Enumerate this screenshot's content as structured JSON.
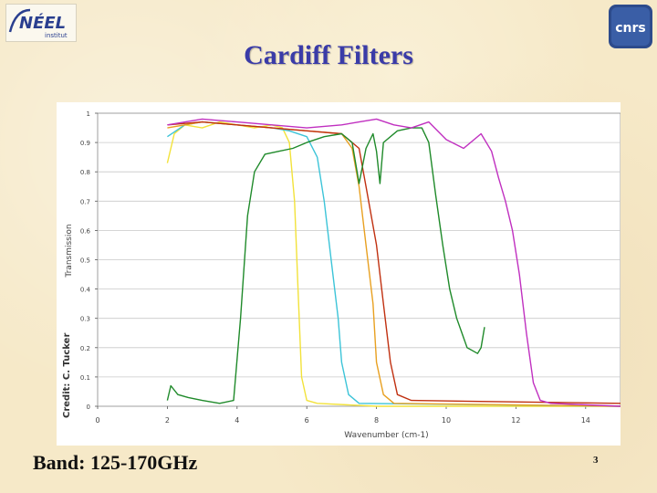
{
  "slide": {
    "title": "Cardiff Filters",
    "band_label": "Band: 125-170GHz",
    "page_number": "3",
    "credit": "Credit: C. Tucker",
    "logo_left_text": "NÉEL",
    "logo_left_sub": "institut",
    "logo_right_text": "cnrs"
  },
  "chart_data": {
    "type": "line",
    "title": "",
    "xlabel": "Wavenumber  (cm-1)",
    "ylabel": "Transmission",
    "xlim": [
      0,
      15
    ],
    "ylim": [
      0,
      1
    ],
    "x_ticks": [
      "0",
      "2",
      "4",
      "6",
      "8",
      "10",
      "12",
      "14"
    ],
    "y_ticks": [
      "0",
      "0.1",
      "0.2",
      "0.3",
      "0.4",
      "0.5",
      "0.6",
      "0.7",
      "0.8",
      "0.9",
      "1"
    ],
    "grid": "horizontal",
    "legend": "none",
    "series": [
      {
        "color": "#f2e23a",
        "points": [
          [
            2.0,
            0.83
          ],
          [
            2.2,
            0.93
          ],
          [
            2.5,
            0.96
          ],
          [
            3.0,
            0.95
          ],
          [
            3.5,
            0.97
          ],
          [
            4.0,
            0.96
          ],
          [
            4.5,
            0.95
          ],
          [
            5.0,
            0.96
          ],
          [
            5.3,
            0.95
          ],
          [
            5.5,
            0.9
          ],
          [
            5.65,
            0.7
          ],
          [
            5.75,
            0.4
          ],
          [
            5.85,
            0.1
          ],
          [
            6.0,
            0.02
          ],
          [
            6.3,
            0.01
          ],
          [
            8.0,
            0.0
          ],
          [
            15.0,
            0.0
          ]
        ]
      },
      {
        "color": "#3cc4d8",
        "points": [
          [
            2.0,
            0.92
          ],
          [
            2.5,
            0.96
          ],
          [
            3.0,
            0.97
          ],
          [
            4.0,
            0.96
          ],
          [
            5.0,
            0.95
          ],
          [
            5.5,
            0.94
          ],
          [
            6.0,
            0.92
          ],
          [
            6.3,
            0.85
          ],
          [
            6.5,
            0.7
          ],
          [
            6.7,
            0.5
          ],
          [
            6.9,
            0.3
          ],
          [
            7.0,
            0.15
          ],
          [
            7.2,
            0.04
          ],
          [
            7.5,
            0.01
          ],
          [
            15.0,
            0.0
          ]
        ]
      },
      {
        "color": "#e8a020",
        "points": [
          [
            2.0,
            0.95
          ],
          [
            3.0,
            0.97
          ],
          [
            4.0,
            0.96
          ],
          [
            5.0,
            0.95
          ],
          [
            6.0,
            0.94
          ],
          [
            7.0,
            0.93
          ],
          [
            7.3,
            0.88
          ],
          [
            7.5,
            0.75
          ],
          [
            7.7,
            0.55
          ],
          [
            7.9,
            0.35
          ],
          [
            8.0,
            0.15
          ],
          [
            8.2,
            0.04
          ],
          [
            8.5,
            0.01
          ],
          [
            15.0,
            0.0
          ]
        ]
      },
      {
        "color": "#c03010",
        "points": [
          [
            2.0,
            0.96
          ],
          [
            3.0,
            0.97
          ],
          [
            4.0,
            0.96
          ],
          [
            5.0,
            0.95
          ],
          [
            6.0,
            0.94
          ],
          [
            7.0,
            0.93
          ],
          [
            7.5,
            0.88
          ],
          [
            7.7,
            0.75
          ],
          [
            8.0,
            0.55
          ],
          [
            8.2,
            0.35
          ],
          [
            8.4,
            0.15
          ],
          [
            8.6,
            0.04
          ],
          [
            9.0,
            0.02
          ],
          [
            15.0,
            0.01
          ]
        ]
      },
      {
        "color": "#1f8a2a",
        "points": [
          [
            2.0,
            0.02
          ],
          [
            2.1,
            0.07
          ],
          [
            2.3,
            0.04
          ],
          [
            2.6,
            0.03
          ],
          [
            3.0,
            0.02
          ],
          [
            3.5,
            0.01
          ],
          [
            3.9,
            0.02
          ],
          [
            4.1,
            0.3
          ],
          [
            4.3,
            0.65
          ],
          [
            4.5,
            0.8
          ],
          [
            4.8,
            0.86
          ],
          [
            5.2,
            0.87
          ],
          [
            5.6,
            0.88
          ],
          [
            6.0,
            0.9
          ],
          [
            6.5,
            0.92
          ],
          [
            7.0,
            0.93
          ],
          [
            7.3,
            0.9
          ],
          [
            7.5,
            0.76
          ],
          [
            7.7,
            0.88
          ],
          [
            7.9,
            0.93
          ],
          [
            8.0,
            0.87
          ],
          [
            8.1,
            0.76
          ],
          [
            8.2,
            0.9
          ],
          [
            8.6,
            0.94
          ],
          [
            9.0,
            0.95
          ],
          [
            9.3,
            0.95
          ],
          [
            9.5,
            0.9
          ],
          [
            9.7,
            0.72
          ],
          [
            9.9,
            0.55
          ],
          [
            10.1,
            0.4
          ],
          [
            10.3,
            0.3
          ],
          [
            10.6,
            0.2
          ],
          [
            10.9,
            0.18
          ],
          [
            11.0,
            0.2
          ],
          [
            11.1,
            0.27
          ]
        ]
      },
      {
        "color": "#c030c0",
        "points": [
          [
            2.0,
            0.96
          ],
          [
            3.0,
            0.98
          ],
          [
            4.0,
            0.97
          ],
          [
            5.0,
            0.96
          ],
          [
            6.0,
            0.95
          ],
          [
            7.0,
            0.96
          ],
          [
            7.5,
            0.97
          ],
          [
            8.0,
            0.98
          ],
          [
            8.5,
            0.96
          ],
          [
            9.0,
            0.95
          ],
          [
            9.5,
            0.97
          ],
          [
            10.0,
            0.91
          ],
          [
            10.5,
            0.88
          ],
          [
            11.0,
            0.93
          ],
          [
            11.3,
            0.87
          ],
          [
            11.5,
            0.78
          ],
          [
            11.7,
            0.7
          ],
          [
            11.9,
            0.6
          ],
          [
            12.1,
            0.45
          ],
          [
            12.3,
            0.25
          ],
          [
            12.5,
            0.08
          ],
          [
            12.7,
            0.02
          ],
          [
            13.0,
            0.01
          ],
          [
            15.0,
            0.0
          ]
        ]
      }
    ]
  }
}
